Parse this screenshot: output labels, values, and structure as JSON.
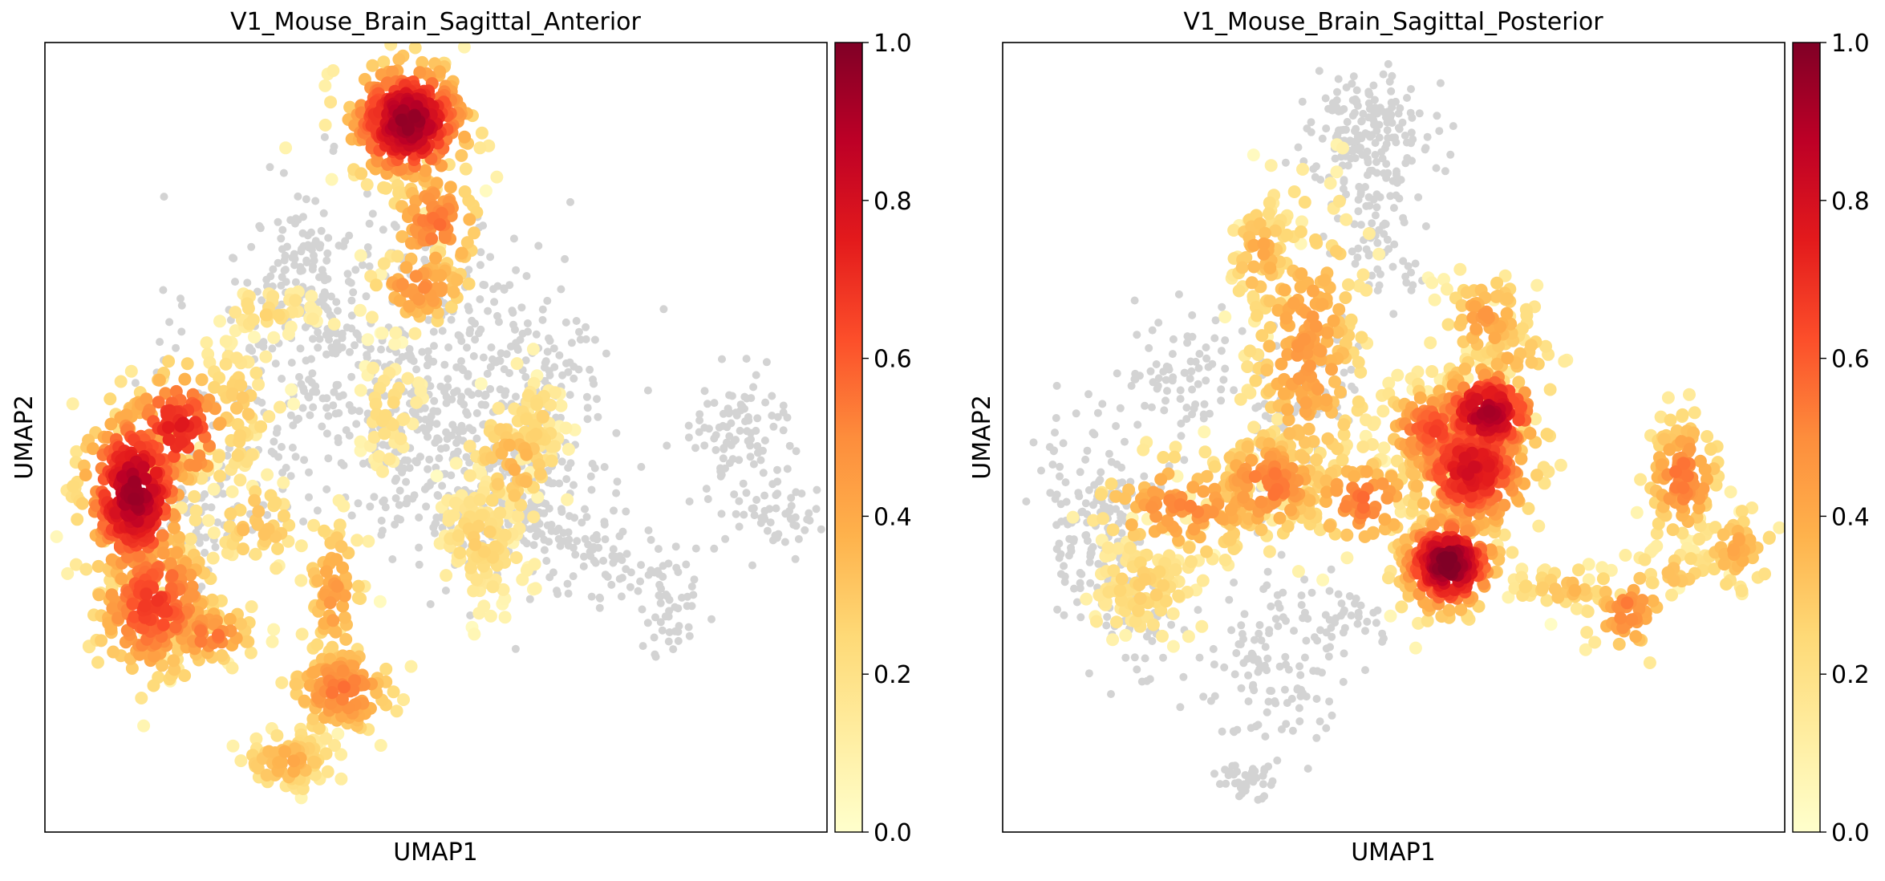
{
  "chart_data": [
    {
      "type": "scatter",
      "title": "V1_Mouse_Brain_Sagittal_Anterior",
      "xlabel": "UMAP1",
      "ylabel": "UMAP2",
      "xlim": [
        0,
        100
      ],
      "ylim": [
        0,
        100
      ],
      "grid": false,
      "colorbar": {
        "colormap": "YlOrRd",
        "range": [
          0.0,
          1.0
        ],
        "ticks": [
          "0.0",
          "0.2",
          "0.4",
          "0.6",
          "0.8",
          "1.0"
        ]
      },
      "background_color": "#d3d3d3",
      "background_clusters": [
        {
          "x": 37,
          "y": 61,
          "sx": 9,
          "sy": 10,
          "n": 330
        },
        {
          "x": 32,
          "y": 73,
          "sx": 3,
          "sy": 4,
          "n": 60
        },
        {
          "x": 56,
          "y": 57,
          "sx": 8,
          "sy": 9,
          "n": 260
        },
        {
          "x": 59,
          "y": 43,
          "sx": 5,
          "sy": 5,
          "n": 120
        },
        {
          "x": 65,
          "y": 40,
          "sx": 5,
          "sy": 6,
          "n": 80
        },
        {
          "x": 20,
          "y": 40,
          "sx": 5,
          "sy": 5,
          "n": 90
        },
        {
          "x": 47,
          "y": 45,
          "sx": 6,
          "sy": 6,
          "n": 110
        },
        {
          "x": 89,
          "y": 51,
          "sx": 3,
          "sy": 4,
          "n": 90
        },
        {
          "x": 93,
          "y": 41,
          "sx": 3,
          "sy": 3,
          "n": 55
        },
        {
          "x": 78,
          "y": 33,
          "sx": 4,
          "sy": 2,
          "n": 35
        },
        {
          "x": 80,
          "y": 27,
          "sx": 2,
          "sy": 3,
          "n": 35
        },
        {
          "x": 70,
          "y": 36,
          "sx": 3,
          "sy": 1.5,
          "n": 25
        },
        {
          "x": 66,
          "y": 60,
          "sx": 3,
          "sy": 3,
          "n": 40
        }
      ],
      "expression_clusters": [
        {
          "x": 46.5,
          "y": 90,
          "sx": 3.8,
          "sy": 3.8,
          "n": 320,
          "v": 0.9
        },
        {
          "x": 50,
          "y": 77,
          "sx": 3,
          "sy": 4,
          "n": 80,
          "v": 0.5
        },
        {
          "x": 48,
          "y": 69,
          "sx": 3.5,
          "sy": 2.5,
          "n": 60,
          "v": 0.45
        },
        {
          "x": 11.5,
          "y": 43,
          "sx": 3.3,
          "sy": 5.5,
          "n": 320,
          "v": 0.88
        },
        {
          "x": 17,
          "y": 51,
          "sx": 3.5,
          "sy": 4,
          "n": 110,
          "v": 0.7
        },
        {
          "x": 14,
          "y": 29,
          "sx": 4,
          "sy": 5,
          "n": 220,
          "v": 0.62
        },
        {
          "x": 21,
          "y": 25,
          "sx": 3,
          "sy": 2,
          "n": 60,
          "v": 0.5
        },
        {
          "x": 38,
          "y": 18,
          "sx": 3.5,
          "sy": 3,
          "n": 110,
          "v": 0.5
        },
        {
          "x": 31,
          "y": 9,
          "sx": 3,
          "sy": 2,
          "n": 80,
          "v": 0.35
        },
        {
          "x": 37,
          "y": 30,
          "sx": 2,
          "sy": 5,
          "n": 70,
          "v": 0.4
        },
        {
          "x": 56,
          "y": 37,
          "sx": 3,
          "sy": 4,
          "n": 110,
          "v": 0.22
        },
        {
          "x": 60,
          "y": 47,
          "sx": 3,
          "sy": 4,
          "n": 80,
          "v": 0.32
        },
        {
          "x": 63,
          "y": 52,
          "sx": 2,
          "sy": 3,
          "n": 50,
          "v": 0.22
        },
        {
          "x": 24,
          "y": 53,
          "sx": 3,
          "sy": 5,
          "n": 60,
          "v": 0.25
        },
        {
          "x": 44,
          "y": 53,
          "sx": 2,
          "sy": 4,
          "n": 50,
          "v": 0.18
        },
        {
          "x": 28,
          "y": 66,
          "sx": 4,
          "sy": 1.5,
          "n": 40,
          "v": 0.2
        },
        {
          "x": 27,
          "y": 39,
          "sx": 3,
          "sy": 3,
          "n": 40,
          "v": 0.3
        }
      ]
    },
    {
      "type": "scatter",
      "title": "V1_Mouse_Brain_Sagittal_Posterior",
      "xlabel": "UMAP1",
      "ylabel": "UMAP2",
      "xlim": [
        0,
        100
      ],
      "ylim": [
        0,
        100
      ],
      "grid": false,
      "colorbar": {
        "colormap": "YlOrRd",
        "range": [
          0.0,
          1.0
        ],
        "ticks": [
          "0.0",
          "0.2",
          "0.4",
          "0.6",
          "0.8",
          "1.0"
        ]
      },
      "background_color": "#d3d3d3",
      "background_clusters": [
        {
          "x": 47,
          "y": 89,
          "sx": 4,
          "sy": 3.5,
          "n": 170
        },
        {
          "x": 48,
          "y": 76,
          "sx": 3,
          "sy": 4,
          "n": 80
        },
        {
          "x": 12,
          "y": 40,
          "sx": 4,
          "sy": 6,
          "n": 160
        },
        {
          "x": 23,
          "y": 58,
          "sx": 4,
          "sy": 4,
          "n": 80
        },
        {
          "x": 34,
          "y": 47,
          "sx": 3,
          "sy": 5,
          "n": 60
        },
        {
          "x": 34,
          "y": 20,
          "sx": 4,
          "sy": 5,
          "n": 110
        },
        {
          "x": 31,
          "y": 7,
          "sx": 2,
          "sy": 1.5,
          "n": 40
        },
        {
          "x": 44,
          "y": 27,
          "sx": 3,
          "sy": 2,
          "n": 40
        },
        {
          "x": 40,
          "y": 58,
          "sx": 3,
          "sy": 4,
          "n": 50
        },
        {
          "x": 18,
          "y": 27,
          "sx": 3,
          "sy": 4,
          "n": 60
        }
      ],
      "expression_clusters": [
        {
          "x": 60,
          "y": 46,
          "sx": 4,
          "sy": 4,
          "n": 280,
          "v": 0.75
        },
        {
          "x": 62,
          "y": 53,
          "sx": 3.5,
          "sy": 3,
          "n": 180,
          "v": 0.85
        },
        {
          "x": 57,
          "y": 34,
          "sx": 3,
          "sy": 3,
          "n": 260,
          "v": 0.95
        },
        {
          "x": 55,
          "y": 51,
          "sx": 3,
          "sy": 3,
          "n": 110,
          "v": 0.6
        },
        {
          "x": 39,
          "y": 61,
          "sx": 4,
          "sy": 10,
          "n": 230,
          "v": 0.4
        },
        {
          "x": 33,
          "y": 73,
          "sx": 2,
          "sy": 4,
          "n": 60,
          "v": 0.35
        },
        {
          "x": 34,
          "y": 44,
          "sx": 4,
          "sy": 3.5,
          "n": 140,
          "v": 0.5
        },
        {
          "x": 23,
          "y": 41,
          "sx": 6,
          "sy": 3.5,
          "n": 120,
          "v": 0.45
        },
        {
          "x": 18,
          "y": 31,
          "sx": 4,
          "sy": 3.5,
          "n": 110,
          "v": 0.22
        },
        {
          "x": 46,
          "y": 42,
          "sx": 4,
          "sy": 3,
          "n": 80,
          "v": 0.5
        },
        {
          "x": 62,
          "y": 65,
          "sx": 3,
          "sy": 3,
          "n": 70,
          "v": 0.4
        },
        {
          "x": 65,
          "y": 60,
          "sx": 3,
          "sy": 3,
          "n": 40,
          "v": 0.3
        },
        {
          "x": 87,
          "y": 45,
          "sx": 2.5,
          "sy": 4,
          "n": 110,
          "v": 0.5
        },
        {
          "x": 94,
          "y": 36,
          "sx": 2.5,
          "sy": 3,
          "n": 50,
          "v": 0.35
        },
        {
          "x": 80,
          "y": 28,
          "sx": 2.5,
          "sy": 3,
          "n": 50,
          "v": 0.48
        },
        {
          "x": 72,
          "y": 31,
          "sx": 4,
          "sy": 1.5,
          "n": 40,
          "v": 0.3
        },
        {
          "x": 86,
          "y": 33,
          "sx": 3,
          "sy": 1.5,
          "n": 30,
          "v": 0.3
        }
      ]
    }
  ]
}
